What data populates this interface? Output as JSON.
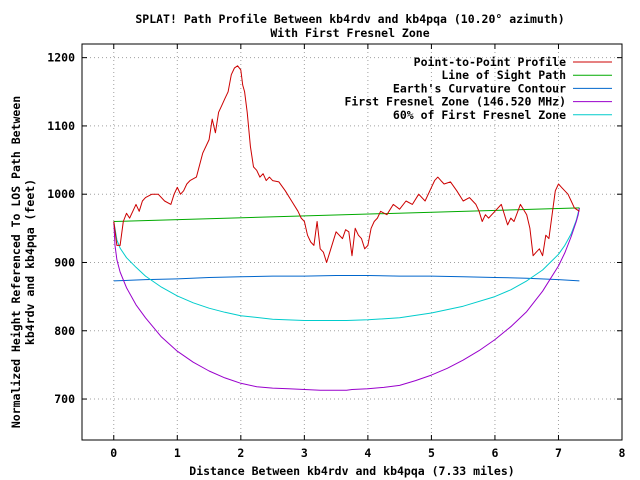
{
  "chart_data": {
    "type": "line",
    "title": "SPLAT! Path Profile Between kb4rdv and kb4pqa (10.20° azimuth)",
    "subtitle": "With First Fresnel Zone",
    "xlabel": "Distance Between kb4rdv and kb4pqa (7.33 miles)",
    "ylabel_line1": "Normalized Height Referenced To LOS Path Between",
    "ylabel_line2": "kb4rdv and kb4pqa (feet)",
    "xlim": [
      -0.5,
      8
    ],
    "ylim": [
      640,
      1220
    ],
    "xticks": [
      0,
      1,
      2,
      3,
      4,
      5,
      6,
      7,
      8
    ],
    "yticks": [
      700,
      800,
      900,
      1000,
      1100,
      1200
    ],
    "grid": true,
    "legend_position": "top-right",
    "series": [
      {
        "name": "Point-to-Point Profile",
        "color": "#cc0000",
        "x": [
          0.0,
          0.05,
          0.1,
          0.15,
          0.2,
          0.25,
          0.3,
          0.35,
          0.4,
          0.45,
          0.5,
          0.6,
          0.7,
          0.8,
          0.9,
          0.95,
          1.0,
          1.05,
          1.1,
          1.15,
          1.2,
          1.3,
          1.4,
          1.5,
          1.55,
          1.6,
          1.65,
          1.7,
          1.75,
          1.8,
          1.85,
          1.9,
          1.95,
          2.0,
          2.03,
          2.06,
          2.1,
          2.15,
          2.2,
          2.25,
          2.3,
          2.35,
          2.4,
          2.45,
          2.5,
          2.6,
          2.7,
          2.8,
          2.9,
          2.95,
          3.0,
          3.05,
          3.1,
          3.15,
          3.2,
          3.25,
          3.3,
          3.35,
          3.4,
          3.5,
          3.6,
          3.65,
          3.7,
          3.75,
          3.8,
          3.85,
          3.9,
          3.95,
          4.0,
          4.05,
          4.1,
          4.15,
          4.2,
          4.3,
          4.4,
          4.5,
          4.6,
          4.7,
          4.8,
          4.9,
          5.0,
          5.05,
          5.1,
          5.15,
          5.2,
          5.3,
          5.4,
          5.5,
          5.6,
          5.7,
          5.75,
          5.8,
          5.85,
          5.9,
          6.0,
          6.1,
          6.2,
          6.25,
          6.3,
          6.4,
          6.5,
          6.55,
          6.6,
          6.65,
          6.7,
          6.75,
          6.8,
          6.85,
          6.9,
          6.95,
          7.0,
          7.05,
          7.1,
          7.15,
          7.2,
          7.25,
          7.33
        ],
        "y": [
          960,
          925,
          925,
          960,
          972,
          965,
          975,
          985,
          975,
          990,
          995,
          1000,
          1000,
          990,
          985,
          1000,
          1010,
          1000,
          1005,
          1015,
          1020,
          1025,
          1060,
          1080,
          1110,
          1090,
          1120,
          1130,
          1140,
          1150,
          1175,
          1185,
          1188,
          1182,
          1160,
          1150,
          1120,
          1070,
          1040,
          1035,
          1025,
          1030,
          1020,
          1025,
          1020,
          1018,
          1005,
          990,
          975,
          965,
          960,
          940,
          930,
          925,
          960,
          920,
          915,
          900,
          915,
          945,
          935,
          948,
          945,
          910,
          950,
          940,
          935,
          920,
          925,
          950,
          960,
          965,
          975,
          970,
          985,
          978,
          990,
          985,
          1000,
          990,
          1010,
          1020,
          1025,
          1020,
          1015,
          1018,
          1005,
          990,
          995,
          985,
          975,
          960,
          970,
          965,
          975,
          985,
          955,
          965,
          960,
          985,
          970,
          950,
          910,
          915,
          920,
          910,
          940,
          935,
          970,
          1005,
          1015,
          1010,
          1005,
          1000,
          990,
          980,
          975
        ]
      },
      {
        "name": "Line of Sight Path",
        "color": "#00aa00",
        "x": [
          0.0,
          7.33
        ],
        "y": [
          960,
          980
        ]
      },
      {
        "name": "Earth's Curvature Contour",
        "color": "#0066cc",
        "x": [
          0.0,
          0.5,
          1.0,
          1.5,
          2.0,
          2.5,
          3.0,
          3.5,
          3.665,
          4.0,
          4.5,
          5.0,
          5.5,
          6.0,
          6.5,
          7.0,
          7.33
        ],
        "y": [
          873,
          875,
          876,
          878,
          879,
          880,
          880,
          881,
          881,
          881,
          880,
          880,
          879,
          878,
          877,
          875,
          873
        ]
      },
      {
        "name": "First Fresnel Zone (146.520 MHz)",
        "color": "#9900cc",
        "x": [
          0.0,
          0.02,
          0.05,
          0.1,
          0.2,
          0.35,
          0.5,
          0.75,
          1.0,
          1.25,
          1.5,
          1.75,
          2.0,
          2.25,
          2.5,
          2.75,
          3.0,
          3.25,
          3.5,
          3.665,
          3.75,
          4.0,
          4.25,
          4.5,
          4.75,
          5.0,
          5.25,
          5.5,
          5.75,
          6.0,
          6.25,
          6.5,
          6.75,
          7.0,
          7.1,
          7.2,
          7.28,
          7.31,
          7.33
        ],
        "y": [
          960,
          925,
          904,
          886,
          863,
          838,
          819,
          791,
          770,
          754,
          741,
          731,
          723,
          718,
          716,
          715,
          714,
          713,
          713,
          713,
          714,
          715,
          717,
          720,
          727,
          735,
          745,
          757,
          771,
          787,
          806,
          828,
          858,
          895,
          914,
          938,
          960,
          970,
          980
        ]
      },
      {
        "name": "60% of First Fresnel Zone",
        "color": "#00cccc",
        "x": [
          0.0,
          0.05,
          0.1,
          0.2,
          0.35,
          0.5,
          0.75,
          1.0,
          1.25,
          1.5,
          1.75,
          2.0,
          2.5,
          3.0,
          3.5,
          3.665,
          4.0,
          4.5,
          5.0,
          5.5,
          6.0,
          6.25,
          6.5,
          6.75,
          7.0,
          7.1,
          7.2,
          7.28,
          7.33
        ],
        "y": [
          960,
          933,
          921,
          907,
          893,
          880,
          864,
          851,
          841,
          833,
          827,
          822,
          817,
          815,
          815,
          815,
          816,
          819,
          826,
          836,
          850,
          860,
          873,
          889,
          912,
          925,
          942,
          962,
          980
        ]
      }
    ]
  }
}
